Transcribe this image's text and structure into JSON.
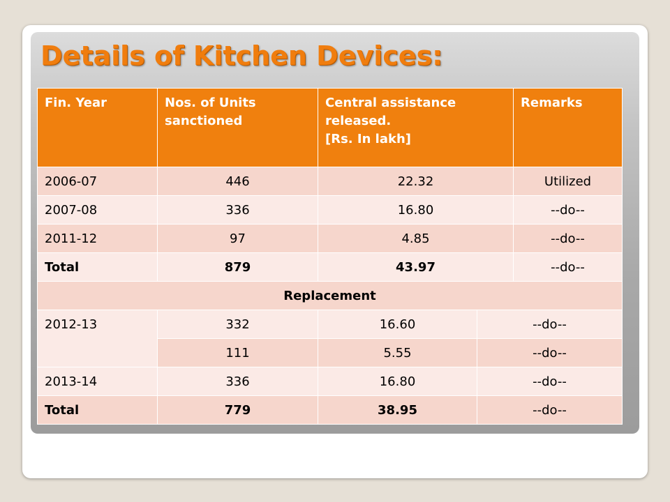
{
  "title": "Details of Kitchen Devices:",
  "colors": {
    "accent": "#f0800e",
    "row_dark": "#f6d6cc",
    "row_light": "#fbeae6",
    "panel_gray": "#a9a9a9"
  },
  "table": {
    "headers": {
      "fin_year": "Fin. Year",
      "units": "Nos. of Units sanctioned",
      "assistance_line1": "Central assistance released.",
      "assistance_line2": "[Rs. In lakh]",
      "remarks": "Remarks"
    },
    "rows": [
      {
        "year": "2006-07",
        "units": "446",
        "amount": "22.32",
        "remarks": "Utilized"
      },
      {
        "year": "2007-08",
        "units": "336",
        "amount": "16.80",
        "remarks": "--do--"
      },
      {
        "year": "2011-12",
        "units": "97",
        "amount": "4.85",
        "remarks": "--do--"
      }
    ],
    "total1": {
      "label": "Total",
      "units": "879",
      "amount": "43.97",
      "remarks": "--do--"
    },
    "section_label": "Replacement",
    "replacement_rows": [
      {
        "year": "2012-13",
        "units": "332",
        "amount": "16.60",
        "remarks": "--do--"
      },
      {
        "units": "111",
        "amount": "5.55",
        "remarks": "--do--"
      },
      {
        "year": "2013-14",
        "units": "336",
        "amount": "16.80",
        "remarks": "--do--"
      }
    ],
    "total2": {
      "label": "Total",
      "units": "779",
      "amount": "38.95",
      "remarks": "--do--"
    }
  }
}
